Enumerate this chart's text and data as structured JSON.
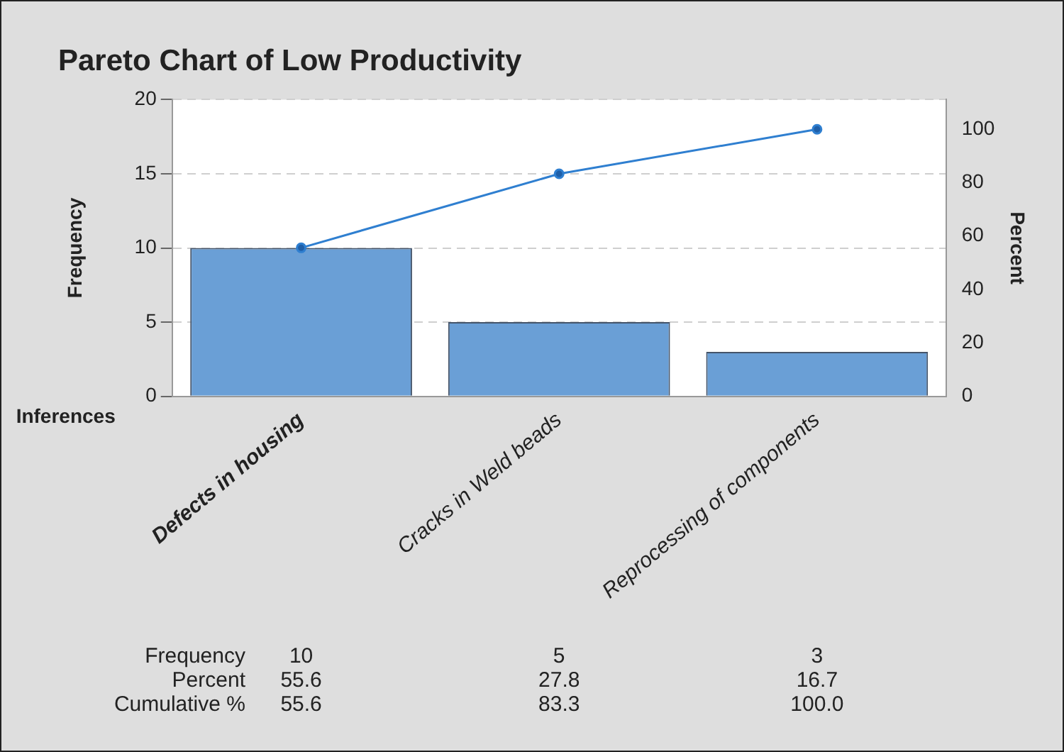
{
  "chart_data": {
    "type": "bar",
    "title": "Pareto Chart of Low Productivity",
    "xlabel": "Inferences",
    "ylabel": "Frequency",
    "y2label": "Percent",
    "categories": [
      "Defects in housing",
      "Cracks in Weld beads",
      "Reprocessing of components"
    ],
    "series": [
      {
        "color": "#6a9fd6",
        "values": [
          10,
          5,
          3
        ],
        "value_labels": [
          "10",
          "5",
          "3"
        ]
      },
      {
        "type": "line",
        "axis": "y2",
        "color": "#2f7fd0",
        "marker": "circle",
        "values": [
          55.6,
          83.3,
          100
        ],
        "value_labels": [
          "55.6",
          "83.3",
          "100.0"
        ]
      }
    ],
    "annotations": [
      "Frequency",
      "Percent",
      "Cumulative %",
      "55.6",
      "27.8",
      "16.7"
    ],
    "ylim": [
      0,
      20
    ],
    "yticks": [
      0,
      5,
      10,
      15,
      20
    ],
    "y2lim": [
      0,
      111.1
    ],
    "y2ticks": [
      0,
      20,
      40,
      60,
      80,
      100
    ],
    "grid": "y",
    "line_style": "solid",
    "legend": false,
    "data_labels": true
  }
}
